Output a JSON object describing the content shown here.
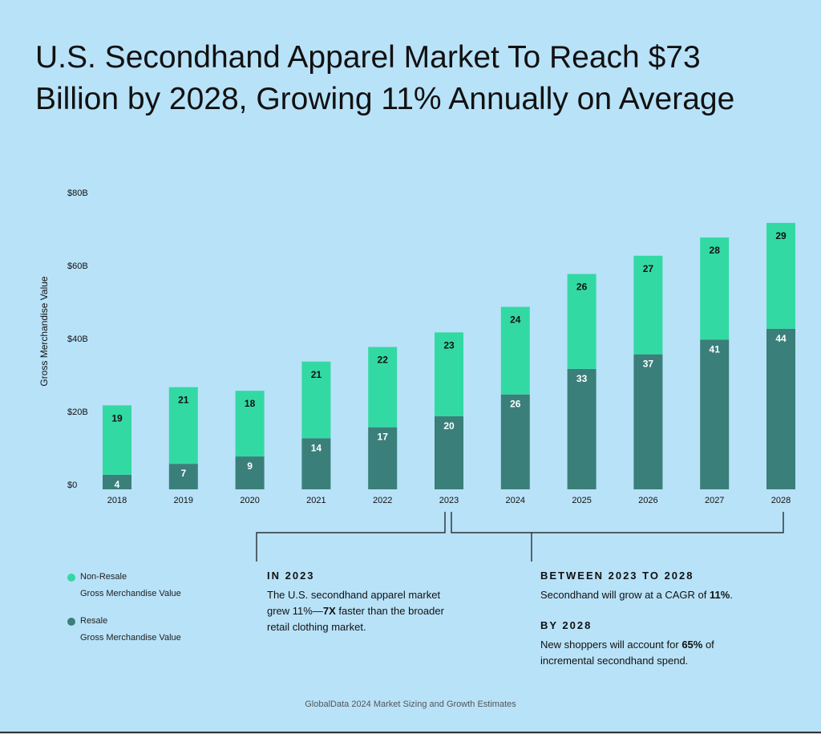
{
  "title_line1": "U.S. Secondhand Apparel Market To Reach $73",
  "title_line2": "Billion by 2028, Growing 11% Annually on Average",
  "colors": {
    "non_resale": "#33d9a3",
    "resale": "#3a7f7a",
    "background": "#b8e2f8"
  },
  "chart_data": {
    "type": "bar",
    "stacked": true,
    "categories": [
      "2018",
      "2019",
      "2020",
      "2021",
      "2022",
      "2023",
      "2024",
      "2025",
      "2026",
      "2027",
      "2028"
    ],
    "series": [
      {
        "name": "Resale Gross Merchandise Value",
        "values": [
          4,
          7,
          9,
          14,
          17,
          20,
          26,
          33,
          37,
          41,
          44
        ]
      },
      {
        "name": "Non-Resale Gross Merchandise Value",
        "values": [
          19,
          21,
          18,
          21,
          22,
          23,
          24,
          26,
          27,
          28,
          29
        ]
      }
    ],
    "ylabel": "Gross Merchandise Value",
    "ylim": [
      0,
      80
    ],
    "yticks": [
      "$0",
      "$20B",
      "$40B",
      "$60B",
      "$80B"
    ],
    "ytick_values": [
      0,
      20,
      40,
      60,
      80
    ]
  },
  "legend": {
    "non_resale_label": "Non-Resale",
    "non_resale_sub": "Gross Merchandise Value",
    "resale_label": "Resale",
    "resale_sub": "Gross Merchandise Value"
  },
  "notes": {
    "in2023_head": "IN 2023",
    "in2023_p1": "The U.S. secondhand apparel market",
    "in2023_p2a": "grew 11%—",
    "in2023_p2b": "7X",
    "in2023_p2c": " faster than the broader",
    "in2023_p3": "retail clothing market.",
    "between_head": "BETWEEN 2023 TO 2028",
    "between_p1a": "Secondhand will grow at a CAGR of ",
    "between_p1b": "11%",
    "between_p1c": ".",
    "by2028_head": "BY 2028",
    "by2028_p1a": "New shoppers will account for ",
    "by2028_p1b": "65%",
    "by2028_p1c": " of",
    "by2028_p2": "incremental secondhand spend."
  },
  "source": "GlobalData 2024 Market Sizing and Growth Estimates"
}
